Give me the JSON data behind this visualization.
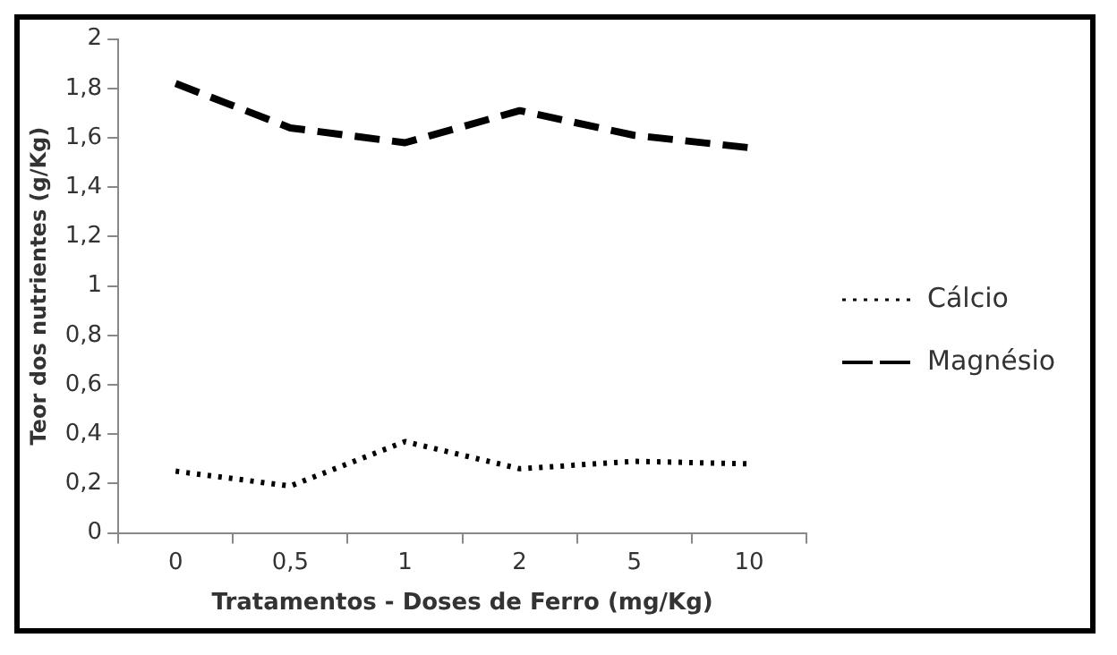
{
  "chart_data": {
    "type": "line",
    "xlabel": "Tratamentos - Doses de Ferro (mg/Kg)",
    "ylabel": "Teor dos nutrientes (g/Kg)",
    "categories": [
      "0",
      "0,5",
      "1",
      "2",
      "5",
      "10"
    ],
    "series": [
      {
        "name": "Cálcio",
        "color": "#000000",
        "line_style": "dotted",
        "values": [
          0.25,
          0.19,
          0.37,
          0.26,
          0.29,
          0.28
        ]
      },
      {
        "name": "Magnésio",
        "color": "#000000",
        "line_style": "dashed",
        "values": [
          1.82,
          1.64,
          1.58,
          1.71,
          1.61,
          1.56
        ]
      }
    ],
    "ylim": [
      0,
      2
    ],
    "yticks": [
      0,
      {
        "value": 0.2,
        "label": "0,2"
      },
      {
        "value": 0.4,
        "label": "0,4"
      },
      {
        "value": 0.6,
        "label": "0,6"
      },
      {
        "value": 0.8,
        "label": "0,8"
      },
      1,
      {
        "value": 1.2,
        "label": "1,2"
      },
      {
        "value": 1.4,
        "label": "1,4"
      },
      {
        "value": 1.6,
        "label": "1,6"
      },
      {
        "value": 1.8,
        "label": "1,8"
      },
      2
    ],
    "grid": false,
    "legend": "right",
    "marker": "none"
  }
}
